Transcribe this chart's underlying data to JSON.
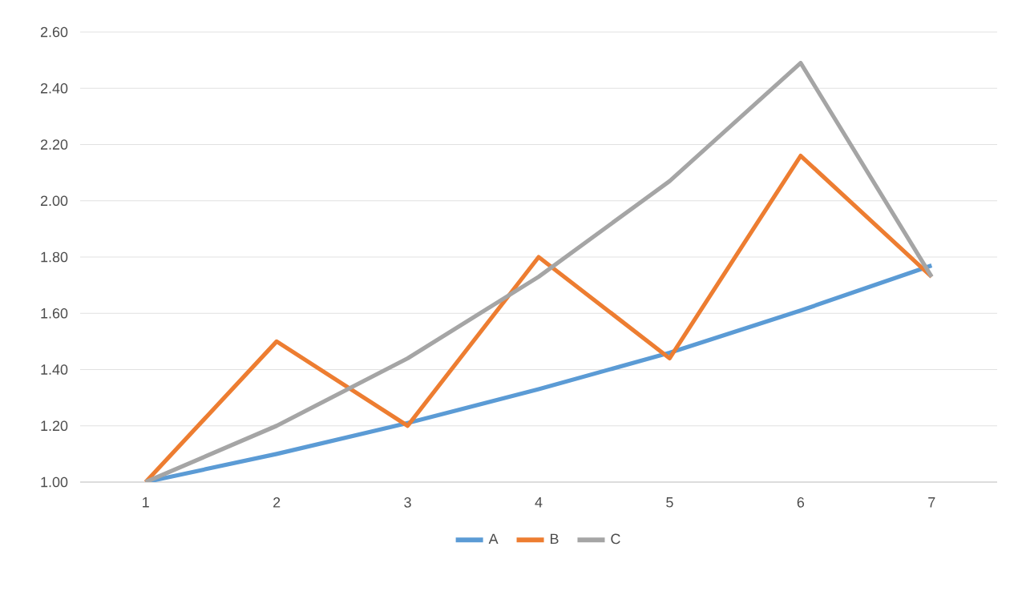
{
  "chart_data": {
    "type": "line",
    "categories": [
      "1",
      "2",
      "3",
      "4",
      "5",
      "6",
      "7"
    ],
    "series": [
      {
        "name": "A",
        "color": "#5b9bd5",
        "values": [
          1.0,
          1.1,
          1.21,
          1.33,
          1.46,
          1.61,
          1.77
        ]
      },
      {
        "name": "B",
        "color": "#ed7d31",
        "values": [
          1.0,
          1.5,
          1.2,
          1.8,
          1.44,
          2.16,
          1.73
        ]
      },
      {
        "name": "C",
        "color": "#a5a5a5",
        "values": [
          1.0,
          1.2,
          1.44,
          1.73,
          2.07,
          2.49,
          1.73
        ]
      }
    ],
    "ylim": [
      1.0,
      2.6
    ],
    "yticks": [
      {
        "value": 1.0,
        "label": "1.00"
      },
      {
        "value": 1.2,
        "label": "1.20"
      },
      {
        "value": 1.4,
        "label": "1.40"
      },
      {
        "value": 1.6,
        "label": "1.60"
      },
      {
        "value": 1.8,
        "label": "1.80"
      },
      {
        "value": 2.0,
        "label": "2.00"
      },
      {
        "value": 2.2,
        "label": "2.20"
      },
      {
        "value": 2.4,
        "label": "2.40"
      },
      {
        "value": 2.6,
        "label": "2.60"
      }
    ],
    "grid": "y",
    "legend": "bottom",
    "marker": "none",
    "line_style": "solid"
  }
}
